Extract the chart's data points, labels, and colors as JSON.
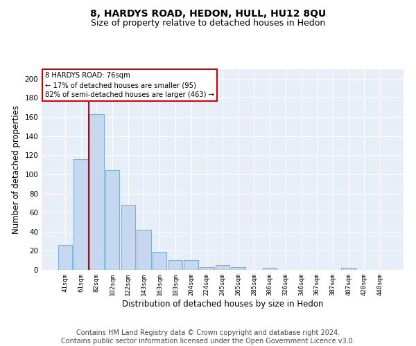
{
  "title": "8, HARDYS ROAD, HEDON, HULL, HU12 8QU",
  "subtitle": "Size of property relative to detached houses in Hedon",
  "xlabel": "Distribution of detached houses by size in Hedon",
  "ylabel": "Number of detached properties",
  "categories": [
    "41sqm",
    "61sqm",
    "82sqm",
    "102sqm",
    "122sqm",
    "143sqm",
    "163sqm",
    "183sqm",
    "204sqm",
    "224sqm",
    "245sqm",
    "265sqm",
    "285sqm",
    "306sqm",
    "326sqm",
    "346sqm",
    "367sqm",
    "387sqm",
    "407sqm",
    "428sqm",
    "448sqm"
  ],
  "values": [
    26,
    116,
    163,
    104,
    68,
    42,
    19,
    10,
    10,
    3,
    5,
    3,
    0,
    2,
    0,
    0,
    0,
    0,
    2,
    0,
    0
  ],
  "bar_color": "#c5d8f0",
  "bar_edge_color": "#7bafd4",
  "background_color": "#e8eef8",
  "grid_color": "#ffffff",
  "annotation_text": "8 HARDYS ROAD: 76sqm\n← 17% of detached houses are smaller (95)\n82% of semi-detached houses are larger (463) →",
  "annotation_box_color": "#ffffff",
  "annotation_box_edge": "#cc0000",
  "vline_color": "#cc0000",
  "ylim": [
    0,
    210
  ],
  "yticks": [
    0,
    20,
    40,
    60,
    80,
    100,
    120,
    140,
    160,
    180,
    200
  ],
  "footer": "Contains HM Land Registry data © Crown copyright and database right 2024.\nContains public sector information licensed under the Open Government Licence v3.0.",
  "title_fontsize": 10,
  "subtitle_fontsize": 9,
  "xlabel_fontsize": 8.5,
  "ylabel_fontsize": 8.5,
  "footer_fontsize": 7
}
